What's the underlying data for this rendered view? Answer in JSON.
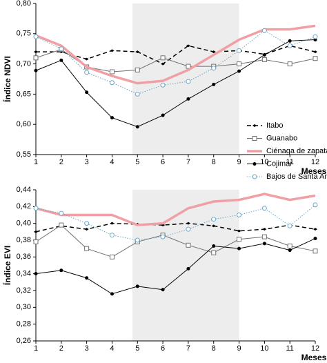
{
  "chart_data": [
    {
      "type": "line",
      "y_label": "Índice NDVI",
      "x_label": "Meses",
      "x": [
        1,
        2,
        3,
        4,
        5,
        6,
        7,
        8,
        9,
        10,
        11,
        12
      ],
      "xlim": [
        1,
        12
      ],
      "xticks": [
        1,
        2,
        3,
        4,
        5,
        6,
        7,
        8,
        9,
        10,
        11,
        12
      ],
      "ylim": [
        0.55,
        0.8
      ],
      "yticks": [
        {
          "value": 0.55,
          "label": "0,55"
        },
        {
          "value": 0.6,
          "label": "0,60"
        },
        {
          "value": 0.65,
          "label": "0,65"
        },
        {
          "value": 0.7,
          "label": "0,70"
        },
        {
          "value": 0.75,
          "label": "0,75"
        },
        {
          "value": 0.8,
          "label": "0,80"
        }
      ],
      "shade": [
        4.8,
        9
      ],
      "legend": "right",
      "series": [
        {
          "name": "Itabo",
          "color": "#000000",
          "dash": "dashed",
          "marker": "diamond",
          "values": [
            0.72,
            0.72,
            0.708,
            0.722,
            0.72,
            0.7,
            0.73,
            0.72,
            0.722,
            0.716,
            0.73,
            0.72
          ]
        },
        {
          "name": "Guanabo",
          "color": "#707070",
          "dash": "solid",
          "marker": "square",
          "values": [
            0.71,
            0.724,
            0.695,
            0.687,
            0.69,
            0.71,
            0.696,
            0.696,
            0.7,
            0.707,
            0.7,
            0.709
          ]
        },
        {
          "name": "Ciénaga de zapata",
          "color": "#f0a0a4",
          "dash": "thick",
          "marker": "none",
          "values": [
            0.747,
            0.73,
            0.695,
            0.68,
            0.668,
            0.672,
            0.69,
            0.715,
            0.74,
            0.757,
            0.757,
            0.763
          ]
        },
        {
          "name": "Cojimar",
          "color": "#000000",
          "dash": "solid",
          "marker": "dot",
          "values": [
            0.689,
            0.706,
            0.653,
            0.611,
            0.596,
            0.615,
            0.642,
            0.666,
            0.688,
            0.715,
            0.738,
            0.74
          ]
        },
        {
          "name": "Bajos de Santa Ana",
          "color": "#6aa6c8",
          "dash": "dotted",
          "marker": "circle",
          "values": [
            0.745,
            0.725,
            0.686,
            0.669,
            0.65,
            0.665,
            0.671,
            0.693,
            0.722,
            0.755,
            0.73,
            0.745
          ]
        }
      ]
    },
    {
      "type": "line",
      "y_label": "Índice EVI",
      "x_label": "Meses",
      "x": [
        1,
        2,
        3,
        4,
        5,
        6,
        7,
        8,
        9,
        10,
        11,
        12
      ],
      "xlim": [
        1,
        12
      ],
      "xticks": [
        1,
        2,
        3,
        4,
        5,
        6,
        7,
        8,
        9,
        10,
        11,
        12
      ],
      "ylim": [
        0.26,
        0.44
      ],
      "yticks": [
        {
          "value": 0.26,
          "label": "0,26"
        },
        {
          "value": 0.28,
          "label": "0,28"
        },
        {
          "value": 0.3,
          "label": "0,30"
        },
        {
          "value": 0.32,
          "label": "0,32"
        },
        {
          "value": 0.34,
          "label": "0,34"
        },
        {
          "value": 0.36,
          "label": "0,36"
        },
        {
          "value": 0.38,
          "label": "0,38"
        },
        {
          "value": 0.4,
          "label": "0,40"
        },
        {
          "value": 0.42,
          "label": "0,42"
        },
        {
          "value": 0.44,
          "label": "0,44"
        }
      ],
      "shade": [
        4.8,
        9
      ],
      "series": [
        {
          "color": "#000000",
          "dash": "dashed",
          "marker": "diamond",
          "values": [
            0.39,
            0.397,
            0.393,
            0.4,
            0.399,
            0.398,
            0.4,
            0.397,
            0.391,
            0.393,
            0.398,
            0.393
          ]
        },
        {
          "color": "#707070",
          "dash": "solid",
          "marker": "square",
          "values": [
            0.378,
            0.398,
            0.37,
            0.36,
            0.378,
            0.386,
            0.374,
            0.365,
            0.381,
            0.384,
            0.373,
            0.367
          ]
        },
        {
          "color": "#f0a0a4",
          "dash": "thick",
          "marker": "none",
          "values": [
            0.418,
            0.41,
            0.41,
            0.41,
            0.398,
            0.4,
            0.418,
            0.426,
            0.428,
            0.435,
            0.428,
            0.433
          ]
        },
        {
          "color": "#000000",
          "dash": "solid",
          "marker": "dot",
          "values": [
            0.34,
            0.344,
            0.335,
            0.316,
            0.325,
            0.321,
            0.346,
            0.373,
            0.37,
            0.376,
            0.368,
            0.382
          ]
        },
        {
          "color": "#6aa6c8",
          "dash": "dotted",
          "marker": "circle",
          "values": [
            0.418,
            0.412,
            0.4,
            0.386,
            0.38,
            0.384,
            0.393,
            0.405,
            0.41,
            0.418,
            0.397,
            0.422
          ]
        }
      ]
    }
  ]
}
